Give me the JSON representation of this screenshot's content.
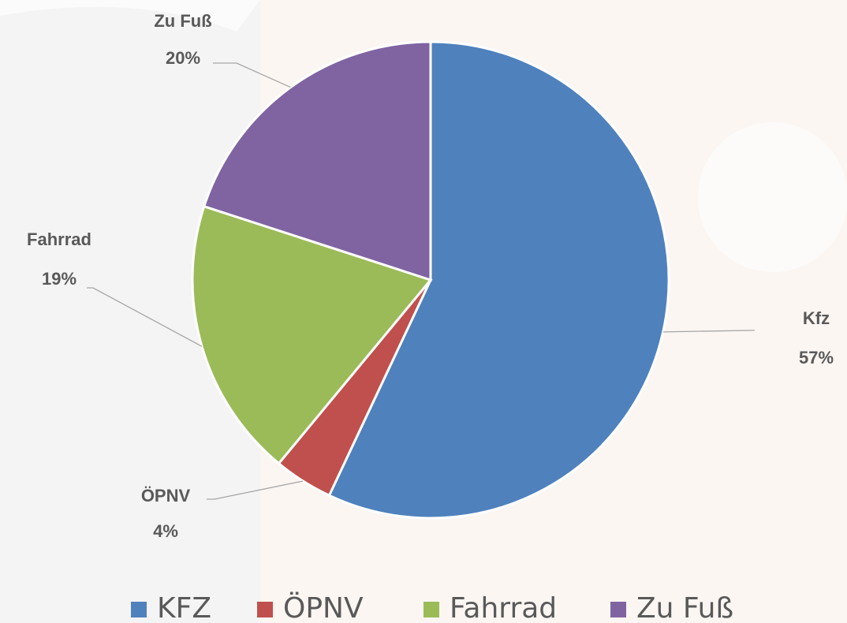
{
  "chart_data": {
    "type": "pie",
    "categories": [
      "Kfz",
      "ÖPNV",
      "Fahrrad",
      "Zu Fuß"
    ],
    "values": [
      57,
      4,
      19,
      20
    ],
    "value_labels": [
      "57%",
      "4%",
      "19%",
      "20%"
    ],
    "legend": [
      "KFZ",
      "ÖPNV",
      "Fahrrad",
      "Zu Fuß"
    ],
    "colors": [
      "#4f81bd",
      "#c0504d",
      "#9bbb59",
      "#8064a2"
    ],
    "legend_position": "bottom"
  }
}
